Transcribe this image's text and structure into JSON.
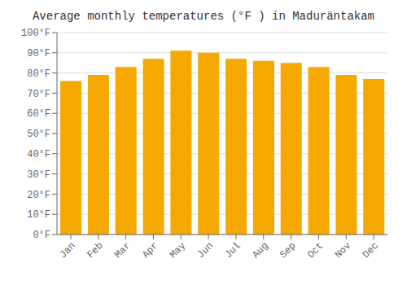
{
  "chart_data": {
    "type": "bar",
    "title": "Average monthly temperatures (°F ) in Maduräntakam",
    "categories": [
      "Jan",
      "Feb",
      "Mar",
      "Apr",
      "May",
      "Jun",
      "Jul",
      "Aug",
      "Sep",
      "Oct",
      "Nov",
      "Dec"
    ],
    "values": [
      76,
      79,
      83,
      87,
      91,
      90,
      87,
      86,
      85,
      83,
      79,
      77
    ],
    "color": "#F5A800",
    "ylim": [
      0,
      100
    ],
    "yticks": [
      {
        "value": 0,
        "label": "0°F"
      },
      {
        "value": 10,
        "label": "10°F"
      },
      {
        "value": 20,
        "label": "20°F"
      },
      {
        "value": 30,
        "label": "30°F"
      },
      {
        "value": 40,
        "label": "40°F"
      },
      {
        "value": 50,
        "label": "50°F"
      },
      {
        "value": 60,
        "label": "60°F"
      },
      {
        "value": 70,
        "label": "70°F"
      },
      {
        "value": 80,
        "label": "80°F"
      },
      {
        "value": 90,
        "label": "90°F"
      },
      {
        "value": 100,
        "label": "100°F"
      }
    ],
    "grid": true
  }
}
